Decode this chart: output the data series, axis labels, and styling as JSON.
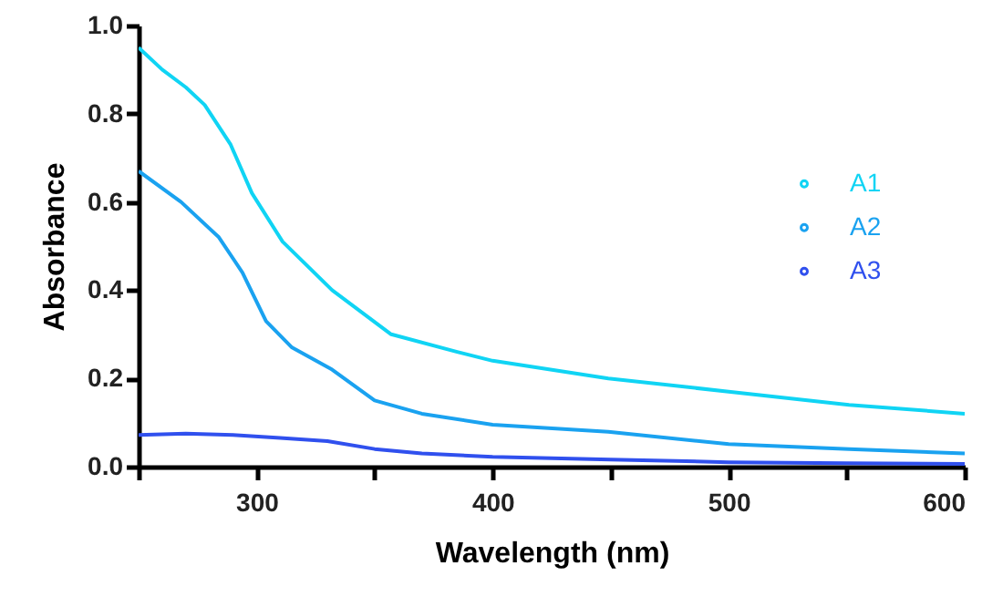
{
  "chart_data": {
    "type": "line",
    "xlabel": "Wavelength (nm)",
    "ylabel": "Absorbance",
    "xlim": [
      250,
      600
    ],
    "ylim": [
      0,
      1
    ],
    "xticks": [
      {
        "value": 250,
        "label": null
      },
      300,
      {
        "value": 350,
        "label": null
      },
      400,
      {
        "value": 450,
        "label": null
      },
      500,
      {
        "value": 550,
        "label": null
      },
      600
    ],
    "yticks": [
      {
        "value": 0,
        "label": "0.0"
      },
      0.2,
      0.4,
      0.6,
      0.8,
      {
        "value": 1,
        "label": "1.0"
      }
    ],
    "grid": false,
    "legend": "right",
    "marker": "none",
    "line_style": "solid",
    "series": [
      {
        "name": "A1",
        "color": "#10d4f4",
        "x": [
          250,
          260,
          270,
          278,
          289,
          298,
          311,
          332,
          357,
          385,
          400,
          449,
          500,
          551,
          600
        ],
        "values": [
          0.95,
          0.9,
          0.86,
          0.82,
          0.73,
          0.62,
          0.51,
          0.4,
          0.3,
          0.26,
          0.24,
          0.2,
          0.17,
          0.14,
          0.12
        ]
      },
      {
        "name": "A2",
        "color": "#1aa2f0",
        "x": [
          250,
          268,
          284,
          294,
          304,
          315,
          332,
          350,
          370,
          400,
          449,
          500,
          551,
          600
        ],
        "values": [
          0.67,
          0.6,
          0.52,
          0.44,
          0.33,
          0.27,
          0.22,
          0.15,
          0.12,
          0.095,
          0.079,
          0.051,
          0.04,
          0.03
        ]
      },
      {
        "name": "A3",
        "color": "#3050ee",
        "x": [
          250,
          270,
          290,
          310,
          330,
          350,
          370,
          400,
          450,
          500,
          550,
          600
        ],
        "values": [
          0.072,
          0.075,
          0.072,
          0.065,
          0.058,
          0.04,
          0.03,
          0.022,
          0.016,
          0.01,
          0.008,
          0.006
        ]
      }
    ]
  }
}
